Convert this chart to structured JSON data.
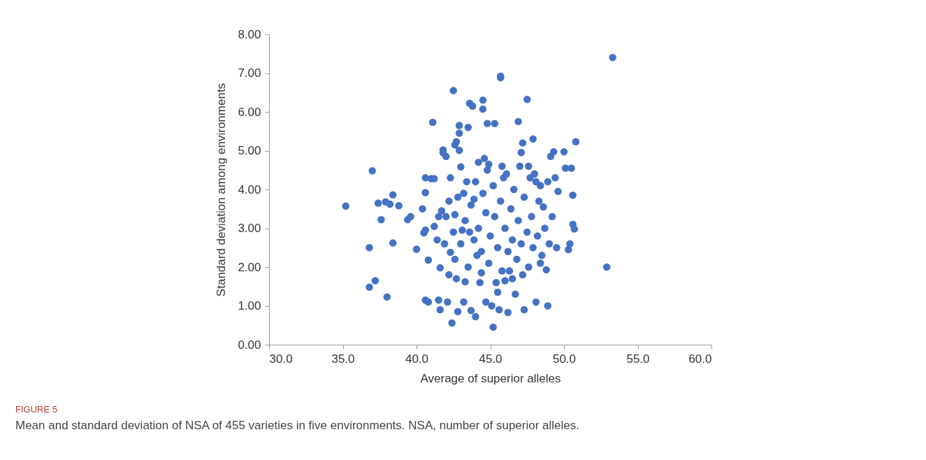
{
  "chart_data": {
    "type": "scatter",
    "xlabel": "Average of superior alleles",
    "ylabel": "Standard deviation among environments",
    "annotations": [
      "FIGURE 5",
      "Mean and standard deviation of NSA of 455 varieties in five environments. NSA, number of superior alleles."
    ],
    "xlim": [
      30,
      60
    ],
    "ylim": [
      0,
      8
    ],
    "xticks": [
      {
        "value": 30,
        "label": "30.0"
      },
      {
        "value": 35,
        "label": "35.0"
      },
      {
        "value": 40,
        "label": "40.0"
      },
      {
        "value": 45,
        "label": "45.0"
      },
      {
        "value": 50,
        "label": "50.0"
      },
      {
        "value": 55,
        "label": "55.0"
      },
      {
        "value": 60,
        "label": "60.0"
      }
    ],
    "yticks": [
      {
        "value": 0,
        "label": "0.00"
      },
      {
        "value": 1,
        "label": "1.00"
      },
      {
        "value": 2,
        "label": "2.00"
      },
      {
        "value": 3,
        "label": "3.00"
      },
      {
        "value": 4,
        "label": "4.00"
      },
      {
        "value": 5,
        "label": "5.00"
      },
      {
        "value": 6,
        "label": "6.00"
      },
      {
        "value": 7,
        "label": "7.00"
      },
      {
        "value": 8,
        "label": "8.00"
      }
    ],
    "grid": false,
    "series": [
      {
        "color": "#4472c4",
        "x": [
          35.2,
          37.0,
          36.8,
          36.8,
          37.2,
          37.4,
          37.6,
          38.0,
          37.9,
          38.2,
          38.4,
          38.4,
          38.8,
          39.4,
          39.6,
          40.0,
          40.4,
          40.5,
          40.6,
          40.6,
          40.8,
          40.6,
          40.6,
          40.8,
          41.0,
          41.2,
          41.1,
          41.2,
          41.4,
          41.5,
          41.6,
          41.6,
          41.7,
          41.8,
          41.8,
          42.0,
          42.2,
          42.1,
          42.3,
          42.4,
          42.5,
          42.6,
          42.6,
          42.7,
          42.7,
          42.8,
          42.9,
          42.9,
          42.9,
          43.0,
          43.1,
          43.2,
          43.3,
          43.4,
          43.5,
          43.6,
          43.7,
          43.8,
          43.9,
          44.0,
          44.1,
          44.2,
          44.4,
          44.5,
          44.5,
          44.6,
          44.7,
          44.8,
          44.9,
          45.1,
          45.2,
          45.3,
          45.5,
          45.6,
          45.7,
          45.7,
          45.8,
          46.0,
          46.2,
          46.5,
          46.9,
          47.1,
          47.2,
          47.3,
          47.5,
          47.6,
          47.9,
          48.0,
          48.1,
          48.4,
          48.6,
          48.8,
          48.9,
          49.1,
          49.3,
          49.5,
          49.6,
          50.0,
          50.1,
          50.3,
          50.4,
          50.5,
          50.6,
          50.6,
          50.7,
          50.8,
          52.9,
          53.3,
          42.0,
          42.5,
          42.8,
          43.0,
          43.3,
          43.5,
          43.7,
          43.9,
          44.0,
          44.2,
          44.4,
          44.5,
          44.7,
          44.9,
          45.0,
          45.2,
          45.3,
          45.5,
          45.7,
          45.8,
          46.0,
          46.1,
          46.2,
          46.4,
          46.5,
          46.6,
          46.8,
          46.9,
          47.0,
          47.1,
          47.3,
          47.5,
          47.6,
          47.8,
          47.9,
          48.1,
          48.2,
          48.3,
          48.5,
          48.7,
          48.9,
          49.0,
          49.2,
          49.4,
          42.3,
          42.6,
          43.2,
          43.6,
          44.3,
          44.8,
          45.4,
          45.9,
          46.3,
          46.7,
          47.2,
          47.7,
          48.4,
          41.5,
          41.9,
          42.2
        ],
        "values": [
          3.57,
          4.48,
          2.5,
          1.48,
          1.65,
          3.65,
          3.22,
          1.23,
          3.68,
          3.62,
          3.86,
          2.62,
          3.58,
          3.22,
          3.3,
          2.46,
          3.5,
          2.88,
          2.95,
          1.15,
          1.1,
          4.3,
          3.92,
          2.18,
          4.28,
          4.28,
          5.73,
          3.05,
          2.7,
          1.15,
          1.98,
          0.9,
          3.45,
          5.02,
          4.95,
          4.85,
          3.7,
          1.1,
          2.38,
          0.56,
          6.55,
          5.15,
          3.35,
          5.23,
          1.7,
          0.85,
          5.65,
          5.45,
          5.01,
          4.58,
          2.95,
          1.1,
          1.62,
          4.2,
          5.6,
          6.22,
          0.88,
          6.15,
          3.75,
          0.72,
          2.3,
          4.7,
          1.85,
          6.3,
          6.07,
          4.8,
          1.1,
          5.7,
          4.65,
          1.0,
          0.45,
          5.7,
          1.35,
          0.9,
          6.92,
          6.88,
          4.6,
          1.65,
          0.83,
          1.7,
          5.75,
          4.95,
          5.2,
          0.9,
          6.32,
          4.6,
          5.3,
          4.4,
          1.1,
          4.1,
          3.55,
          1.93,
          1.0,
          4.85,
          4.97,
          2.5,
          3.95,
          4.97,
          4.55,
          2.45,
          2.6,
          4.55,
          3.85,
          3.1,
          2.98,
          5.23,
          2.0,
          7.4,
          3.3,
          2.9,
          3.8,
          2.6,
          3.2,
          2.0,
          3.6,
          2.7,
          4.2,
          3.0,
          2.4,
          3.9,
          3.4,
          2.1,
          2.8,
          4.1,
          3.3,
          2.5,
          3.7,
          1.9,
          3.0,
          4.4,
          2.4,
          3.5,
          2.7,
          4.0,
          2.2,
          3.2,
          4.6,
          2.6,
          3.8,
          2.9,
          2.0,
          3.3,
          2.5,
          4.2,
          2.8,
          3.7,
          2.3,
          3.0,
          4.2,
          2.6,
          3.3,
          4.3,
          4.3,
          2.2,
          3.9,
          2.9,
          1.6,
          4.5,
          1.6,
          4.3,
          1.9,
          1.3,
          1.8,
          4.3,
          2.1,
          3.3,
          2.6,
          1.8
        ]
      }
    ]
  }
}
